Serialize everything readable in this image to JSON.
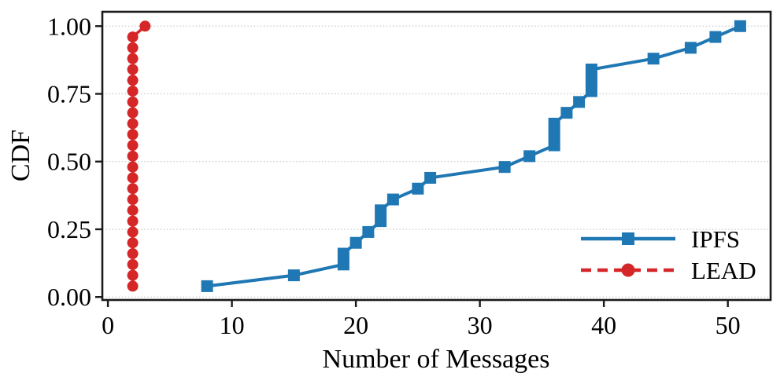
{
  "chart_data": {
    "type": "line",
    "title": "",
    "xlabel": "Number of Messages",
    "ylabel": "CDF",
    "xlim": [
      -0.45,
      53.45
    ],
    "ylim": [
      -0.011,
      1.053
    ],
    "xticks": [
      0,
      10,
      20,
      30,
      40,
      50
    ],
    "yticks": [
      0,
      0.25,
      0.5,
      0.75,
      1
    ],
    "ytick_labels": [
      "0.00",
      "0.25",
      "0.50",
      "0.75",
      "1.00"
    ],
    "grid": {
      "axis": "y",
      "style": "dotted",
      "color": "#c9c9c9"
    },
    "legend": {
      "position": "lower right"
    },
    "axis_color": "#1a1a1a",
    "series": [
      {
        "name": "IPFS",
        "color": "#1f77b4",
        "marker": "square",
        "linestyle": "solid",
        "x": [
          8,
          15,
          19,
          19,
          20,
          21,
          22,
          22,
          23,
          25,
          26,
          32,
          34,
          36,
          36,
          36,
          37,
          38,
          39,
          39,
          39,
          44,
          47,
          49,
          51
        ],
        "y": [
          0.04,
          0.08,
          0.12,
          0.16,
          0.2,
          0.24,
          0.28,
          0.32,
          0.36,
          0.4,
          0.44,
          0.48,
          0.52,
          0.56,
          0.6,
          0.64,
          0.68,
          0.72,
          0.76,
          0.8,
          0.84,
          0.88,
          0.92,
          0.96,
          1.0
        ]
      },
      {
        "name": "LEAD",
        "color": "#d62728",
        "marker": "circle",
        "linestyle": "dashed",
        "x": [
          2,
          2,
          2,
          2,
          2,
          2,
          2,
          2,
          2,
          2,
          2,
          2,
          2,
          2,
          2,
          2,
          2,
          2,
          2,
          2,
          2,
          2,
          2,
          2,
          3
        ],
        "y": [
          0.04,
          0.08,
          0.12,
          0.16,
          0.2,
          0.24,
          0.28,
          0.32,
          0.36,
          0.4,
          0.44,
          0.48,
          0.52,
          0.56,
          0.6,
          0.64,
          0.68,
          0.72,
          0.76,
          0.8,
          0.84,
          0.88,
          0.92,
          0.96,
          1.0
        ]
      }
    ]
  }
}
